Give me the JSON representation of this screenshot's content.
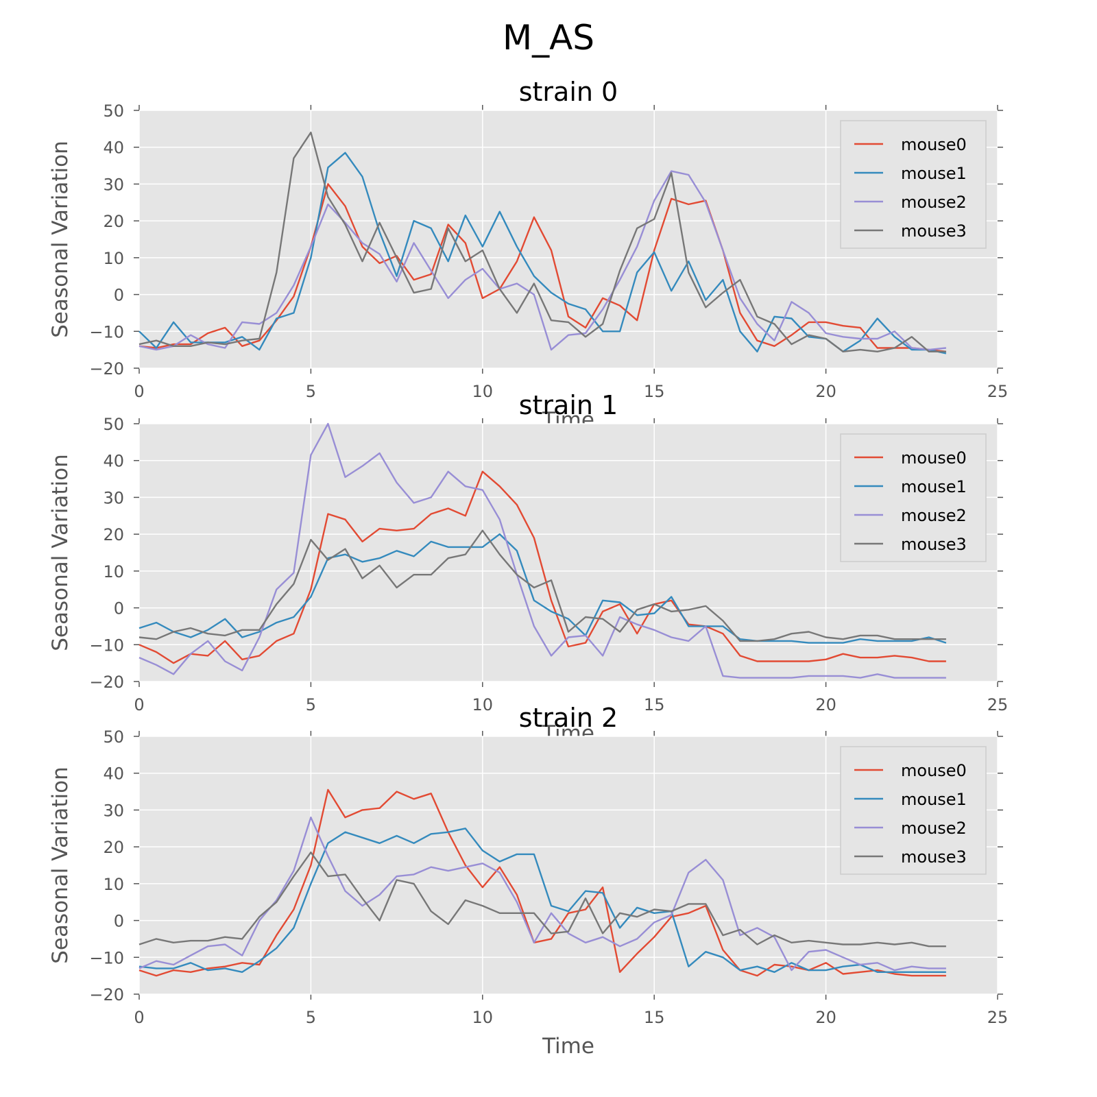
{
  "title": "M_AS",
  "colors": {
    "mouse0": "#e24a33",
    "mouse1": "#348abd",
    "mouse2": "#988ed5",
    "mouse3": "#777777"
  },
  "chart_data": [
    {
      "type": "line",
      "title": "strain 0",
      "xlabel": "Time",
      "ylabel": "Seasonal Variation",
      "xlim": [
        0,
        25
      ],
      "ylim": [
        -20,
        50
      ],
      "xticks": [
        "0",
        "5",
        "10",
        "15",
        "20",
        "25"
      ],
      "yticks": [
        "−20",
        "−10",
        "0",
        "10",
        "20",
        "30",
        "40",
        "50"
      ],
      "grid": true,
      "legend": "top-right",
      "x": [
        0,
        0.5,
        1,
        1.5,
        2,
        2.5,
        3,
        3.5,
        4,
        4.5,
        5,
        5.5,
        6,
        6.5,
        7,
        7.5,
        8,
        8.5,
        9,
        9.5,
        10,
        10.5,
        11,
        11.5,
        12,
        12.5,
        13,
        13.5,
        14,
        14.5,
        15,
        15.5,
        16,
        16.5,
        17,
        17.5,
        18,
        18.5,
        19,
        19.5,
        20,
        20.5,
        21,
        21.5,
        22,
        22.5,
        23,
        23.5
      ],
      "series": [
        {
          "name": "mouse0",
          "values": [
            -14,
            -14.5,
            -13.5,
            -13.5,
            -10.5,
            -9,
            -14,
            -12.5,
            -7,
            -0.5,
            13,
            30,
            24,
            13,
            8.5,
            10.5,
            4,
            5.5,
            19,
            14,
            -1,
            1.5,
            9,
            21,
            12,
            -6,
            -9,
            -1,
            -3,
            -7,
            12,
            26,
            24.5,
            25.5,
            12,
            -5,
            -12.5,
            -14,
            -11,
            -7.5,
            -7.5,
            -8.5,
            -9,
            -14.5,
            -14.5,
            -14.5,
            -15,
            -15.5
          ]
        },
        {
          "name": "mouse1",
          "values": [
            -10,
            -14.5,
            -7.5,
            -13,
            -13,
            -13,
            -11.5,
            -15,
            -6.5,
            -5,
            10,
            34.5,
            38.5,
            32,
            17,
            5,
            20,
            18,
            9,
            21.5,
            13,
            22.5,
            13,
            5,
            0.5,
            -2.5,
            -4,
            -10,
            -10,
            6,
            11.5,
            1,
            9,
            -1.5,
            4,
            -10,
            -15.5,
            -6,
            -6.5,
            -11.5,
            -12,
            -15.5,
            -12.5,
            -6.5,
            -11.5,
            -15,
            -15,
            -16
          ]
        },
        {
          "name": "mouse2",
          "values": [
            -14,
            -15,
            -14,
            -11,
            -13.5,
            -14.5,
            -7.5,
            -8,
            -5,
            2.5,
            13,
            24.5,
            19.5,
            14,
            11,
            3.5,
            14,
            6.5,
            -1,
            4,
            7,
            1.5,
            3,
            0,
            -15,
            -11,
            -10.5,
            -4,
            4,
            13,
            25.5,
            33.5,
            32.5,
            25,
            12,
            -1,
            -8,
            -12.5,
            -2,
            -5,
            -10.5,
            -11.5,
            -12,
            -12,
            -10,
            -14.5,
            -15,
            -14.5
          ]
        },
        {
          "name": "mouse3",
          "values": [
            -13.5,
            -12.5,
            -14,
            -14,
            -13,
            -13.5,
            -12.5,
            -12,
            6,
            37,
            44,
            26.5,
            19,
            9,
            19.5,
            10,
            0.5,
            1.5,
            18,
            9,
            12,
            1.5,
            -5,
            3,
            -7,
            -7.5,
            -11.5,
            -8,
            6.5,
            18,
            20.5,
            33,
            6,
            -3.5,
            0.5,
            4,
            -6,
            -8,
            -13.5,
            -11,
            -12,
            -15.5,
            -15,
            -15.5,
            -14.5,
            -11.5,
            -15.5,
            -15.5
          ]
        }
      ]
    },
    {
      "type": "line",
      "title": "strain 1",
      "xlabel": "Time",
      "ylabel": "Seasonal Variation",
      "xlim": [
        0,
        25
      ],
      "ylim": [
        -20,
        50
      ],
      "xticks": [
        "0",
        "5",
        "10",
        "15",
        "20",
        "25"
      ],
      "yticks": [
        "−20",
        "−10",
        "0",
        "10",
        "20",
        "30",
        "40",
        "50"
      ],
      "grid": true,
      "legend": "top-right",
      "x": [
        0,
        0.5,
        1,
        1.5,
        2,
        2.5,
        3,
        3.5,
        4,
        4.5,
        5,
        5.5,
        6,
        6.5,
        7,
        7.5,
        8,
        8.5,
        9,
        9.5,
        10,
        10.5,
        11,
        11.5,
        12,
        12.5,
        13,
        13.5,
        14,
        14.5,
        15,
        15.5,
        16,
        16.5,
        17,
        17.5,
        18,
        18.5,
        19,
        19.5,
        20,
        20.5,
        21,
        21.5,
        22,
        22.5,
        23,
        23.5
      ],
      "series": [
        {
          "name": "mouse0",
          "values": [
            -10,
            -12,
            -15,
            -12.5,
            -13,
            -9,
            -14,
            -13,
            -9,
            -7,
            5,
            25.5,
            24,
            18,
            21.5,
            21,
            21.5,
            25.5,
            27,
            25,
            37,
            33,
            28,
            19,
            2,
            -10.5,
            -9.5,
            -1,
            1,
            -7,
            1,
            2,
            -4.5,
            -5,
            -7,
            -13,
            -14.5,
            -14.5,
            -14.5,
            -14.5,
            -14,
            -12.5,
            -13.5,
            -13.5,
            -13,
            -13.5,
            -14.5,
            -14.5
          ]
        },
        {
          "name": "mouse1",
          "values": [
            -5.5,
            -4,
            -6.5,
            -8,
            -6,
            -3,
            -8,
            -6.5,
            -4,
            -2.5,
            3,
            13.5,
            14.5,
            12.5,
            13.5,
            15.5,
            14,
            18,
            16.5,
            16.5,
            16.5,
            20,
            15.5,
            2,
            -1,
            -3,
            -7.5,
            2,
            1.5,
            -2,
            -1.5,
            3,
            -5,
            -5,
            -5,
            -8.5,
            -9,
            -9,
            -9,
            -9.5,
            -9.5,
            -9.5,
            -8.5,
            -9,
            -9,
            -9,
            -8,
            -9.5
          ]
        },
        {
          "name": "mouse2",
          "values": [
            -13.5,
            -15.5,
            -18,
            -12.5,
            -9,
            -14.5,
            -17,
            -8,
            5,
            9.5,
            41.5,
            50,
            35.5,
            38.5,
            42,
            34,
            28.5,
            30,
            37,
            33,
            32,
            24,
            9,
            -5,
            -13,
            -8,
            -7.5,
            -13,
            -2.5,
            -4.5,
            -6,
            -8,
            -9,
            -5,
            -18.5,
            -19,
            -19,
            -19,
            -19,
            -18.5,
            -18.5,
            -18.5,
            -19,
            -18,
            -19,
            -19,
            -19,
            -19
          ]
        },
        {
          "name": "mouse3",
          "values": [
            -8,
            -8.5,
            -6.5,
            -5.5,
            -7,
            -7.5,
            -6,
            -6,
            1,
            6.5,
            18.5,
            13,
            16,
            8,
            11.5,
            5.5,
            9,
            9,
            13.5,
            14.5,
            21,
            14.5,
            9,
            5.5,
            7.5,
            -6.5,
            -2.5,
            -3,
            -6.5,
            -0.5,
            1,
            -1,
            -0.5,
            0.5,
            -3.5,
            -9,
            -9,
            -8.5,
            -7,
            -6.5,
            -8,
            -8.5,
            -7.5,
            -7.5,
            -8.5,
            -8.5,
            -8.5,
            -8.5
          ]
        }
      ]
    },
    {
      "type": "line",
      "title": "strain 2",
      "xlabel": "Time",
      "ylabel": "Seasonal Variation",
      "xlim": [
        0,
        25
      ],
      "ylim": [
        -20,
        50
      ],
      "xticks": [
        "0",
        "5",
        "10",
        "15",
        "20",
        "25"
      ],
      "yticks": [
        "−20",
        "−10",
        "0",
        "10",
        "20",
        "30",
        "40",
        "50"
      ],
      "grid": true,
      "legend": "top-right",
      "x": [
        0,
        0.5,
        1,
        1.5,
        2,
        2.5,
        3,
        3.5,
        4,
        4.5,
        5,
        5.5,
        6,
        6.5,
        7,
        7.5,
        8,
        8.5,
        9,
        9.5,
        10,
        10.5,
        11,
        11.5,
        12,
        12.5,
        13,
        13.5,
        14,
        14.5,
        15,
        15.5,
        16,
        16.5,
        17,
        17.5,
        18,
        18.5,
        19,
        19.5,
        20,
        20.5,
        21,
        21.5,
        22,
        22.5,
        23,
        23.5
      ],
      "series": [
        {
          "name": "mouse0",
          "values": [
            -13.5,
            -15,
            -13.5,
            -14,
            -13,
            -12.5,
            -11.5,
            -12,
            -4,
            3,
            15,
            35.5,
            28,
            30,
            30.5,
            35,
            33,
            34.5,
            24,
            15,
            9,
            14.5,
            7,
            -6,
            -5,
            2,
            3,
            9,
            -14,
            -9,
            -4.5,
            1,
            2,
            4,
            -8,
            -13.5,
            -15,
            -12,
            -12.5,
            -13.5,
            -11.5,
            -14.5,
            -14,
            -13.5,
            -14.5,
            -15,
            -15,
            -15
          ]
        },
        {
          "name": "mouse1",
          "values": [
            -12.5,
            -13,
            -13,
            -11.5,
            -13.5,
            -13,
            -14,
            -11,
            -7.5,
            -2,
            10,
            21,
            24,
            22.5,
            21,
            23,
            21,
            23.5,
            24,
            25,
            19,
            16,
            18,
            18,
            4,
            2.5,
            8,
            7.5,
            -2,
            3.5,
            2,
            2.5,
            -12.5,
            -8.5,
            -10,
            -13.5,
            -12.5,
            -14,
            -11.5,
            -13.5,
            -13.5,
            -12.5,
            -12,
            -14,
            -14,
            -14,
            -14,
            -14
          ]
        },
        {
          "name": "mouse2",
          "values": [
            -13,
            -11,
            -12,
            -9.5,
            -7,
            -6.5,
            -9.5,
            0,
            5.5,
            13.5,
            28,
            17.5,
            8,
            4,
            7,
            12,
            12.5,
            14.5,
            13.5,
            14.5,
            15.5,
            13,
            5,
            -6,
            2,
            -3.5,
            -6,
            -4.5,
            -7,
            -5,
            -0.5,
            1.5,
            13,
            16.5,
            11,
            -4,
            -2,
            -4.5,
            -13.5,
            -8.5,
            -8,
            -10,
            -12,
            -11.5,
            -13.5,
            -12.5,
            -13,
            -13
          ]
        },
        {
          "name": "mouse3",
          "values": [
            -6.5,
            -5,
            -6,
            -5.5,
            -5.5,
            -4.5,
            -5,
            1,
            5,
            12,
            18.5,
            12,
            12.5,
            6,
            0,
            11,
            10,
            2.5,
            -1,
            5.5,
            4,
            2,
            2,
            2,
            -3.5,
            -3,
            6,
            -3.5,
            2,
            1,
            3,
            2.5,
            4.5,
            4.5,
            -4,
            -2.5,
            -6.5,
            -4,
            -6,
            -5.5,
            -6,
            -6.5,
            -6.5,
            -6,
            -6.5,
            -6,
            -7,
            -7
          ]
        }
      ]
    }
  ]
}
